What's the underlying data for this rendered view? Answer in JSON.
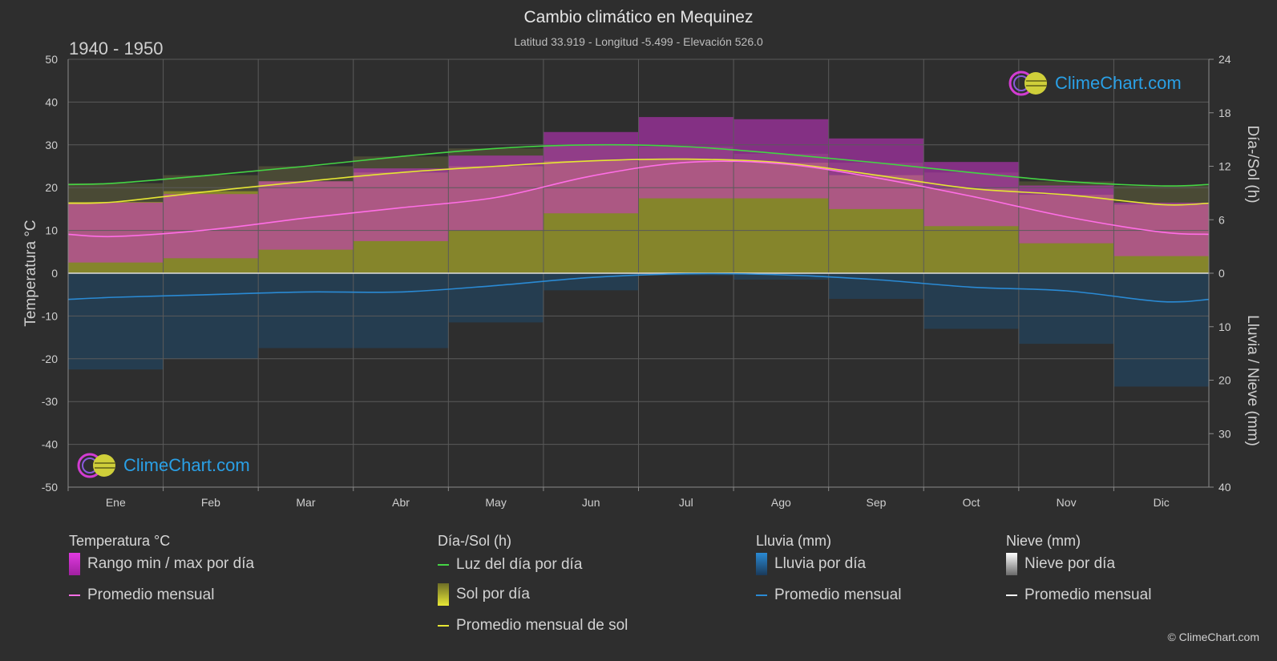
{
  "header": {
    "title": "Cambio climático en Mequinez",
    "subtitle": "Latitud 33.919 - Longitud -5.499 - Elevación 526.0",
    "period": "1940 - 1950"
  },
  "brand": {
    "name": "ClimeChart.com",
    "copyright": "© ClimeChart.com"
  },
  "axes": {
    "left_label": "Temperatura °C",
    "right_top_label": "Día-/Sol (h)",
    "right_bottom_label": "Lluvia / Nieve (mm)",
    "left_ticks": [
      "50",
      "40",
      "30",
      "20",
      "10",
      "0",
      "-10",
      "-20",
      "-30",
      "-40",
      "-50"
    ],
    "right_top_ticks": [
      "24",
      "18",
      "12",
      "6",
      "0"
    ],
    "right_bottom_ticks": [
      "10",
      "20",
      "30",
      "40"
    ]
  },
  "legend": {
    "temperature": {
      "heading": "Temperatura °C",
      "range": "Rango min / max por día",
      "avg": "Promedio mensual"
    },
    "daylight": {
      "heading": "Día-/Sol (h)",
      "daylight": "Luz del día por día",
      "sun": "Sol por día",
      "sun_avg": "Promedio mensual de sol"
    },
    "rain": {
      "heading": "Lluvia (mm)",
      "rain": "Lluvia por día",
      "avg": "Promedio mensual"
    },
    "snow": {
      "heading": "Nieve (mm)",
      "snow": "Nieve por día",
      "avg": "Promedio mensual"
    }
  },
  "colors": {
    "daylight": "#44d444",
    "sunshine_avg": "#e6e633",
    "temp_avg": "#ff6ee6",
    "temp_range": "#cc33cc",
    "sun_fill": "#8c8c2a",
    "rain": "#2a8ad4",
    "snow": "#ffffff"
  },
  "chart_data": {
    "type": "area",
    "months": [
      "Ene",
      "Feb",
      "Mar",
      "Abr",
      "May",
      "Jun",
      "Jul",
      "Ago",
      "Sep",
      "Oct",
      "Nov",
      "Dic"
    ],
    "temp_ylim": [
      -50,
      50
    ],
    "sun_ylim": [
      0,
      24
    ],
    "precip_ylim": [
      0,
      40
    ],
    "series": [
      {
        "name": "Luz del día por día",
        "unit": "h",
        "values": [
          10.1,
          11.0,
          12.0,
          13.1,
          14.0,
          14.4,
          14.2,
          13.4,
          12.4,
          11.3,
          10.3,
          9.8
        ]
      },
      {
        "name": "Promedio mensual de sol",
        "unit": "h",
        "values": [
          8.0,
          9.2,
          10.3,
          11.3,
          12.0,
          12.6,
          12.8,
          12.4,
          11.0,
          9.5,
          8.8,
          7.7
        ]
      },
      {
        "name": "Promedio mensual",
        "unit": "°C",
        "values": [
          8.6,
          10.2,
          12.9,
          15.3,
          17.7,
          22.7,
          25.9,
          25.6,
          22.3,
          18.0,
          13.2,
          9.6
        ]
      },
      {
        "name": "Rango min / max por día",
        "unit": "°C",
        "min": [
          2.5,
          3.5,
          5.5,
          7.5,
          10.0,
          14.0,
          17.5,
          17.5,
          15.0,
          11.0,
          7.0,
          4.0
        ],
        "max": [
          16.5,
          18.5,
          21.5,
          24.5,
          27.5,
          33.0,
          36.5,
          36.0,
          31.5,
          26.0,
          20.5,
          16.5
        ]
      },
      {
        "name": "Lluvia promedio mensual",
        "unit": "mm",
        "values": [
          4.5,
          4.0,
          3.5,
          3.5,
          2.3,
          0.8,
          0.1,
          0.3,
          1.2,
          2.6,
          3.3,
          5.3
        ]
      }
    ]
  }
}
